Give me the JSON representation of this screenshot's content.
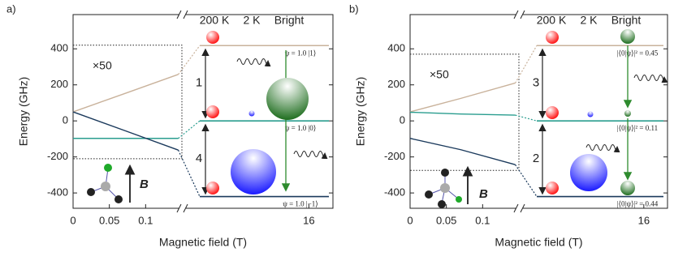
{
  "chart_data": [
    {
      "type": "line",
      "panel_label": "a)",
      "xlabel": "Magnetic field (T)",
      "ylabel": "Energy (GHz)",
      "xlim": [
        0,
        16.2
      ],
      "xbreak": [
        0.15,
        15
      ],
      "xticks": [
        0,
        0.05,
        0.1,
        16
      ],
      "ylim": [
        -485,
        590
      ],
      "yticks": [
        -400,
        -200,
        0,
        200,
        400
      ],
      "x": [
        0,
        0.07,
        0.145
      ],
      "series": [
        {
          "color": "#c9b29b",
          "values": [
            50,
            150,
            258
          ]
        },
        {
          "color": "#2a9d8f",
          "values": [
            -97,
            -97,
            -97
          ]
        },
        {
          "color": "#1b3a5c",
          "values": [
            50,
            -52,
            -162
          ]
        }
      ],
      "levels": [
        418,
        0,
        -420
      ],
      "zoom_box": {
        "x": [
          0,
          0.15
        ],
        "y": [
          -210,
          420
        ],
        "label": "×50"
      },
      "column_labels": [
        {
          "text": "200 K",
          "color": "#ff0000"
        },
        {
          "text": "2 K",
          "color": "#0000ff"
        },
        {
          "text": "Bright",
          "color": "#2e8b2e"
        }
      ],
      "transitions": [
        "1",
        "4"
      ],
      "state_labels": [
        "ψ = 1.0 |1⟩",
        "ψ = 1.0 |0⟩",
        "ψ = 1.0 |−1⟩"
      ],
      "field_label": "B"
    },
    {
      "type": "line",
      "panel_label": "b)",
      "xlabel": "Magnetic field (T)",
      "ylabel": "Energy (GHz)",
      "xlim": [
        0,
        16.2
      ],
      "xbreak": [
        0.15,
        15
      ],
      "xticks": [
        0,
        0.05,
        0.1,
        16
      ],
      "ylim": [
        -485,
        590
      ],
      "yticks": [
        -400,
        -200,
        0,
        200,
        400
      ],
      "x": [
        0,
        0.07,
        0.145
      ],
      "series": [
        {
          "color": "#c9b29b",
          "values": [
            50,
            125,
            210
          ]
        },
        {
          "color": "#2a9d8f",
          "values": [
            48,
            38,
            32
          ]
        },
        {
          "color": "#1b3a5c",
          "values": [
            -97,
            -160,
            -243
          ]
        }
      ],
      "levels": [
        418,
        0,
        -420
      ],
      "zoom_box": {
        "x": [
          0,
          0.15
        ],
        "y": [
          -275,
          370
        ],
        "label": "×50"
      },
      "column_labels": [
        {
          "text": "200 K",
          "color": "#ff0000"
        },
        {
          "text": "2 K",
          "color": "#0000ff"
        },
        {
          "text": "Bright",
          "color": "#2e8b2e"
        }
      ],
      "transitions": [
        "3",
        "2"
      ],
      "state_labels": [
        "|⟨0|ψ⟩|² = 0.45",
        "|⟨0|ψ⟩|² = 0.11",
        "|⟨0|ψ⟩|² = 0.44"
      ],
      "field_label": "B"
    }
  ]
}
